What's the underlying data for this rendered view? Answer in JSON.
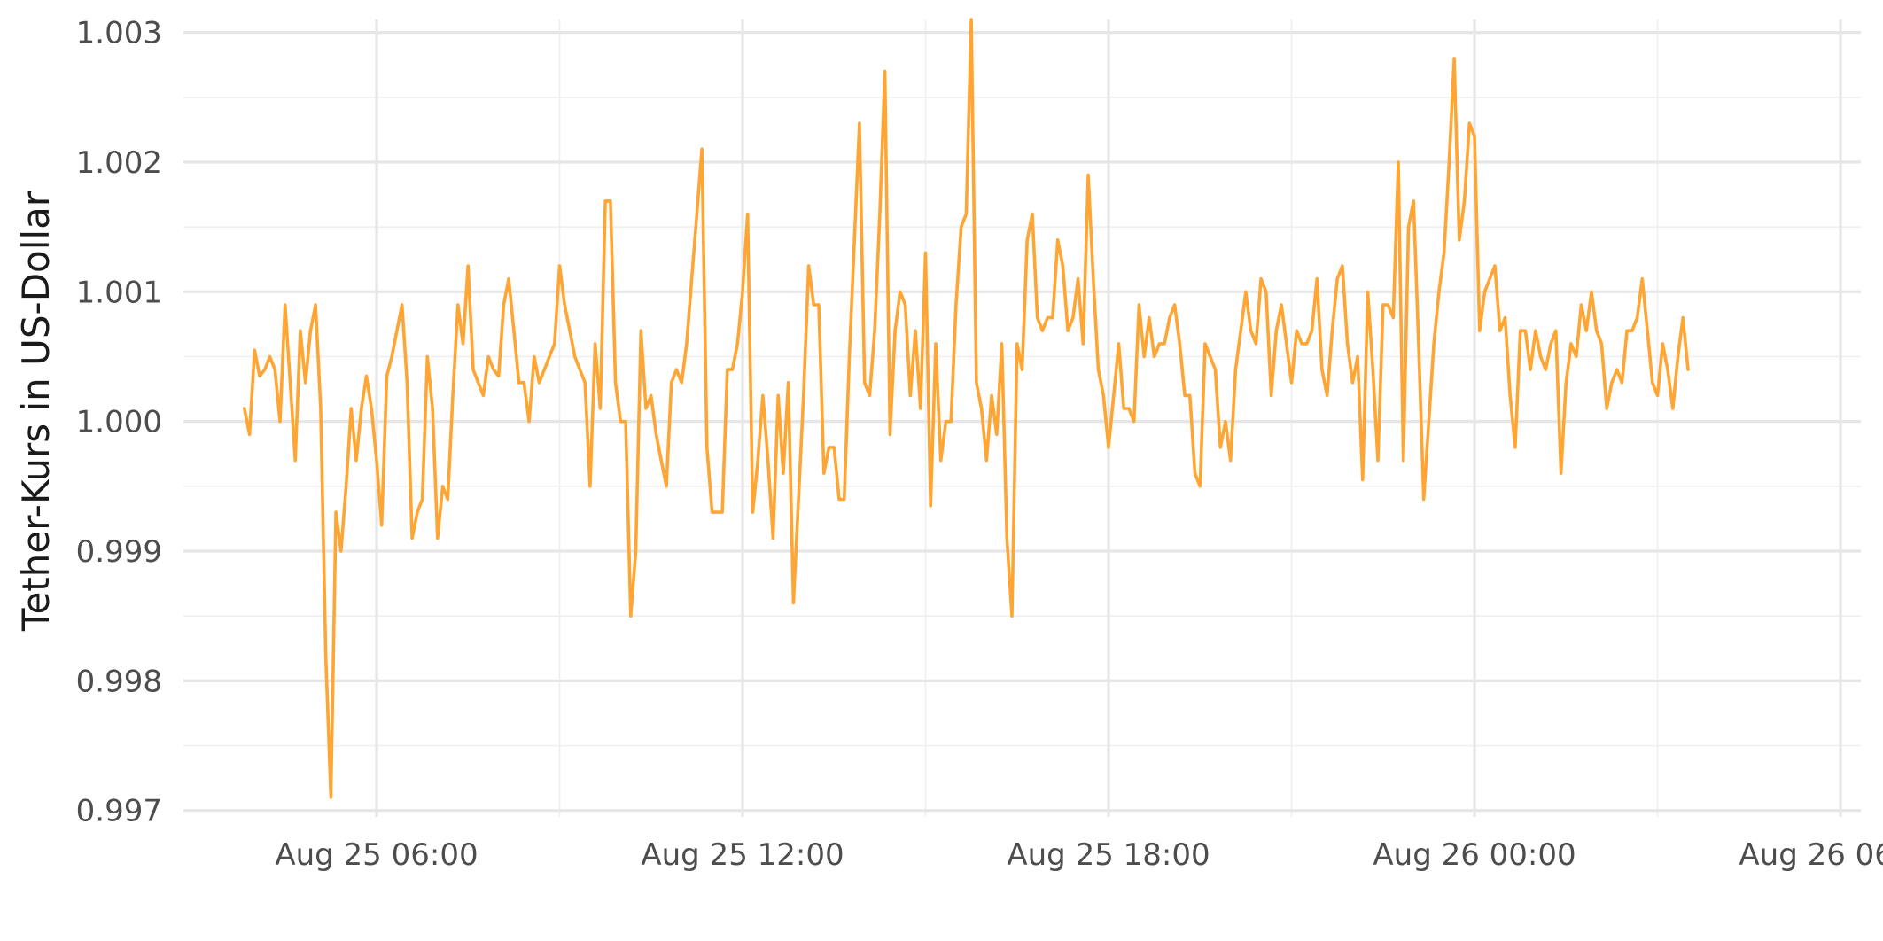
{
  "chart_data": {
    "type": "line",
    "title": "",
    "xlabel": "",
    "ylabel": "Tether-Kurs in US-Dollar",
    "x_unit": "time (Aug 25 – Aug 26), 5-minute steps",
    "x_start": "Aug 25 03:50",
    "x_step_minutes": 5,
    "xlim": [
      "Aug 25 02:50",
      "Aug 26 06:20"
    ],
    "ylim": [
      0.99695,
      1.0031
    ],
    "x_major_ticks": [
      {
        "value": "Aug 25 06:00",
        "label": "Aug 25 06:00"
      },
      {
        "value": "Aug 25 12:00",
        "label": "Aug 25 12:00"
      },
      {
        "value": "Aug 25 18:00",
        "label": "Aug 25 18:00"
      },
      {
        "value": "Aug 26 00:00",
        "label": "Aug 26 00:00"
      },
      {
        "value": "Aug 26 06:00",
        "label": "Aug 26 06:00"
      }
    ],
    "x_minor_ticks": [
      "Aug 25 09:00",
      "Aug 25 15:00",
      "Aug 25 21:00",
      "Aug 26 03:00"
    ],
    "y_major_ticks": [
      {
        "value": 0.997,
        "label": "0.997"
      },
      {
        "value": 0.998,
        "label": "0.998"
      },
      {
        "value": 0.999,
        "label": "0.999"
      },
      {
        "value": 1.0,
        "label": "1.000"
      },
      {
        "value": 1.001,
        "label": "1.001"
      },
      {
        "value": 1.002,
        "label": "1.002"
      },
      {
        "value": 1.003,
        "label": "1.003"
      }
    ],
    "y_minor_ticks": [
      0.9975,
      0.9985,
      0.9995,
      1.0005,
      1.0015,
      1.0025
    ],
    "grid": true,
    "legend": "none",
    "series": [
      {
        "color": "#FFA533",
        "values": [
          1.0001,
          0.9999,
          1.00055,
          1.00035,
          1.0004,
          1.0005,
          1.0004,
          1.0,
          1.0009,
          1.0003,
          0.9997,
          1.0007,
          1.0003,
          1.0007,
          1.0009,
          1.0001,
          0.9982,
          0.9971,
          0.9993,
          0.999,
          0.9995,
          1.0001,
          0.9997,
          1.0001,
          1.00035,
          1.0001,
          0.9997,
          0.9992,
          1.00035,
          1.0005,
          1.0007,
          1.0009,
          1.0003,
          0.9991,
          0.9993,
          0.9994,
          1.0005,
          1.0001,
          0.9991,
          0.9995,
          0.9994,
          1.0002,
          1.0009,
          1.0006,
          1.0012,
          1.0004,
          1.0003,
          1.0002,
          1.0005,
          1.0004,
          1.00035,
          1.0009,
          1.0011,
          1.0007,
          1.0003,
          1.0003,
          1.0,
          1.0005,
          1.0003,
          1.0004,
          1.0005,
          1.0006,
          1.0012,
          1.0009,
          1.0007,
          1.0005,
          1.0004,
          1.0003,
          0.9995,
          1.0006,
          1.0001,
          1.0017,
          1.0017,
          1.0003,
          1.0,
          1.0,
          0.9985,
          0.999,
          1.0007,
          1.0001,
          1.0002,
          0.9999,
          0.9997,
          0.9995,
          1.0003,
          1.0004,
          1.0003,
          1.0006,
          1.0011,
          1.0016,
          1.0021,
          0.9998,
          0.9993,
          0.9993,
          0.9993,
          1.0004,
          1.0004,
          1.0006,
          1.001,
          1.0016,
          0.9993,
          0.9997,
          1.0002,
          0.9997,
          0.9991,
          1.0002,
          0.9996,
          1.0003,
          0.9986,
          0.9994,
          1.0002,
          1.0012,
          1.0009,
          1.0009,
          0.9996,
          0.9998,
          0.9998,
          0.9994,
          0.9994,
          1.0005,
          1.0014,
          1.0023,
          1.0003,
          1.0002,
          1.0007,
          1.0016,
          1.0027,
          0.9999,
          1.0007,
          1.001,
          1.0009,
          1.0002,
          1.0007,
          1.0001,
          1.0013,
          0.99935,
          1.0006,
          0.9997,
          1.0,
          1.0,
          1.0009,
          1.0015,
          1.0016,
          1.0031,
          1.0003,
          1.0001,
          0.9997,
          1.0002,
          0.9999,
          1.0006,
          0.9991,
          0.9985,
          1.0006,
          1.0004,
          1.0014,
          1.0016,
          1.0008,
          1.0007,
          1.0008,
          1.0008,
          1.0014,
          1.0012,
          1.0007,
          1.0008,
          1.0011,
          1.0006,
          1.0019,
          1.0011,
          1.0004,
          1.0002,
          0.9998,
          1.0002,
          1.0006,
          1.0001,
          1.0001,
          1.0,
          1.0009,
          1.0005,
          1.0008,
          1.0005,
          1.0006,
          1.0006,
          1.0008,
          1.0009,
          1.0006,
          1.0002,
          1.0002,
          0.9996,
          0.9995,
          1.0006,
          1.0005,
          1.0004,
          0.9998,
          1.0,
          0.9997,
          1.0004,
          1.0007,
          1.001,
          1.0007,
          1.0006,
          1.0011,
          1.001,
          1.0002,
          1.0007,
          1.0009,
          1.0006,
          1.0003,
          1.0007,
          1.0006,
          1.0006,
          1.0007,
          1.0011,
          1.0004,
          1.0002,
          1.0007,
          1.0011,
          1.0012,
          1.0006,
          1.0003,
          1.0005,
          0.99955,
          1.001,
          1.0004,
          0.9997,
          1.0009,
          1.0009,
          1.0008,
          1.002,
          0.9997,
          1.0015,
          1.0017,
          1.0006,
          0.9994,
          1.0,
          1.0006,
          1.001,
          1.0013,
          1.002,
          1.0028,
          1.0014,
          1.0017,
          1.0023,
          1.0022,
          1.0007,
          1.001,
          1.0011,
          1.0012,
          1.0007,
          1.0008,
          1.0002,
          0.9998,
          1.0007,
          1.0007,
          1.0004,
          1.0007,
          1.0005,
          1.0004,
          1.0006,
          1.0007,
          0.9996,
          1.0003,
          1.0006,
          1.0005,
          1.0009,
          1.0007,
          1.001,
          1.0007,
          1.0006,
          1.0001,
          1.0003,
          1.0004,
          1.0003,
          1.0007,
          1.0007,
          1.0008,
          1.0011,
          1.0007,
          1.0003,
          1.0002,
          1.0006,
          1.0004,
          1.0001,
          1.0005,
          1.0008,
          1.0004
        ]
      }
    ]
  }
}
